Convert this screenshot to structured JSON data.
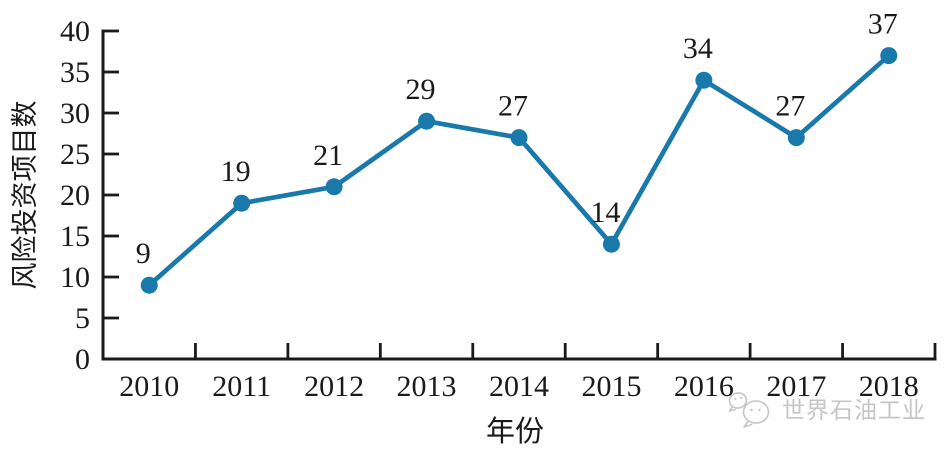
{
  "chart": {
    "accent_color": "#1979ab",
    "axis_color": "#1a1a1a",
    "text_color": "#1a1a1a",
    "background": "#ffffff"
  },
  "chart_data": {
    "type": "line",
    "title": "",
    "categories": [
      "2010",
      "2011",
      "2012",
      "2013",
      "2014",
      "2015",
      "2016",
      "2017",
      "2018"
    ],
    "series": [
      {
        "name": "风险投资项目数",
        "values": [
          9,
          19,
          21,
          29,
          27,
          14,
          34,
          27,
          37
        ]
      }
    ],
    "xlabel": "年份",
    "ylabel": "风险投资项目数",
    "ylim": [
      0,
      40
    ],
    "yticks": [
      0,
      5,
      10,
      15,
      20,
      25,
      30,
      35,
      40
    ],
    "grid": false,
    "legend": "none",
    "data_labels": true,
    "line_color": "#1979ab",
    "marker": "circle"
  },
  "watermark": {
    "icon": "wechat-icon",
    "text": "世界石油工业",
    "color": "#c6c6c6"
  }
}
